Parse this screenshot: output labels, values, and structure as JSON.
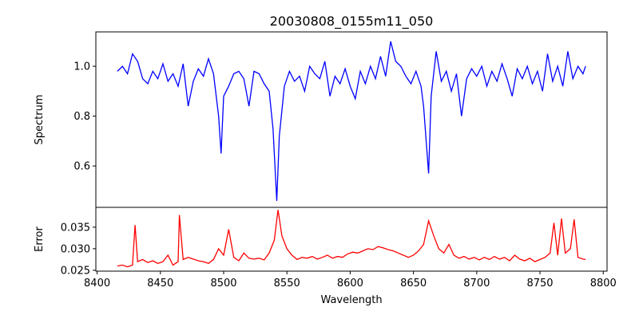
{
  "chart_data": [
    {
      "type": "line",
      "title": "20030808_0155m11_050",
      "xlabel": "",
      "ylabel": "Spectrum",
      "xlim": [
        8399,
        8803
      ],
      "ylim": [
        0.434,
        1.138
      ],
      "yticks": [
        0.6,
        0.8,
        1.0
      ],
      "ytick_labels": [
        "0.6",
        "0.8",
        "1.0"
      ],
      "color": "#0000ff",
      "x": [
        8416,
        8420,
        8424,
        8428,
        8432,
        8436,
        8440,
        8444,
        8448,
        8452,
        8456,
        8460,
        8464,
        8468,
        8472,
        8476,
        8480,
        8484,
        8488,
        8492,
        8496,
        8498,
        8500,
        8504,
        8508,
        8512,
        8516,
        8520,
        8524,
        8528,
        8532,
        8536,
        8539,
        8542,
        8544,
        8548,
        8552,
        8556,
        8560,
        8564,
        8568,
        8572,
        8576,
        8580,
        8584,
        8588,
        8592,
        8596,
        8600,
        8604,
        8608,
        8612,
        8616,
        8620,
        8624,
        8628,
        8632,
        8636,
        8640,
        8644,
        8648,
        8652,
        8656,
        8658,
        8662,
        8664,
        8668,
        8672,
        8676,
        8680,
        8684,
        8688,
        8692,
        8696,
        8700,
        8704,
        8708,
        8712,
        8716,
        8720,
        8724,
        8728,
        8732,
        8736,
        8740,
        8744,
        8748,
        8752,
        8756,
        8760,
        8764,
        8768,
        8772,
        8776,
        8780,
        8784,
        8786
      ],
      "y": [
        0.98,
        1.0,
        0.97,
        1.05,
        1.02,
        0.95,
        0.93,
        0.98,
        0.95,
        1.01,
        0.94,
        0.97,
        0.92,
        1.01,
        0.84,
        0.94,
        0.99,
        0.96,
        1.03,
        0.97,
        0.8,
        0.65,
        0.88,
        0.92,
        0.97,
        0.98,
        0.95,
        0.84,
        0.98,
        0.97,
        0.93,
        0.9,
        0.75,
        0.46,
        0.72,
        0.92,
        0.98,
        0.94,
        0.96,
        0.9,
        1.0,
        0.97,
        0.95,
        1.02,
        0.88,
        0.96,
        0.93,
        0.99,
        0.92,
        0.87,
        0.98,
        0.93,
        1.0,
        0.95,
        1.04,
        0.96,
        1.1,
        1.02,
        1.0,
        0.96,
        0.93,
        0.98,
        0.92,
        0.84,
        0.57,
        0.88,
        1.06,
        0.94,
        0.98,
        0.9,
        0.97,
        0.8,
        0.95,
        0.99,
        0.96,
        1.0,
        0.92,
        0.98,
        0.94,
        1.01,
        0.95,
        0.88,
        0.99,
        0.95,
        1.0,
        0.93,
        0.98,
        0.9,
        1.05,
        0.94,
        1.0,
        0.92,
        1.06,
        0.95,
        1.0,
        0.97,
        1.0
      ]
    },
    {
      "type": "line",
      "title": "",
      "xlabel": "Wavelength",
      "ylabel": "Error",
      "xlim": [
        8399,
        8803
      ],
      "ylim": [
        0.0248,
        0.0396
      ],
      "xticks": [
        8400,
        8450,
        8500,
        8550,
        8600,
        8650,
        8700,
        8750,
        8800
      ],
      "xtick_labels": [
        "8400",
        "8450",
        "8500",
        "8550",
        "8600",
        "8650",
        "8700",
        "8750",
        "8800"
      ],
      "yticks": [
        0.025,
        0.03,
        0.035
      ],
      "ytick_labels": [
        "0.025",
        "0.030",
        "0.035"
      ],
      "color": "#ff0000",
      "x": [
        8416,
        8420,
        8424,
        8428,
        8430,
        8432,
        8436,
        8440,
        8444,
        8448,
        8452,
        8456,
        8460,
        8464,
        8465,
        8468,
        8472,
        8476,
        8480,
        8484,
        8488,
        8492,
        8496,
        8500,
        8504,
        8508,
        8512,
        8516,
        8520,
        8524,
        8528,
        8532,
        8536,
        8540,
        8543,
        8546,
        8550,
        8554,
        8558,
        8562,
        8566,
        8570,
        8574,
        8578,
        8582,
        8586,
        8590,
        8594,
        8598,
        8602,
        8606,
        8610,
        8614,
        8618,
        8622,
        8626,
        8630,
        8634,
        8638,
        8642,
        8646,
        8650,
        8654,
        8658,
        8662,
        8666,
        8670,
        8674,
        8678,
        8682,
        8686,
        8690,
        8694,
        8698,
        8702,
        8706,
        8710,
        8714,
        8718,
        8722,
        8726,
        8730,
        8734,
        8738,
        8742,
        8746,
        8750,
        8754,
        8758,
        8761,
        8764,
        8767,
        8770,
        8774,
        8777,
        8780,
        8784,
        8786
      ],
      "y": [
        0.026,
        0.0262,
        0.0258,
        0.0262,
        0.0355,
        0.027,
        0.0275,
        0.0268,
        0.0272,
        0.0266,
        0.027,
        0.0285,
        0.0262,
        0.027,
        0.0378,
        0.0275,
        0.028,
        0.0276,
        0.0272,
        0.027,
        0.0266,
        0.0275,
        0.03,
        0.0285,
        0.0345,
        0.028,
        0.0272,
        0.029,
        0.0278,
        0.0276,
        0.0278,
        0.0274,
        0.029,
        0.032,
        0.039,
        0.033,
        0.03,
        0.0285,
        0.0275,
        0.028,
        0.0278,
        0.0282,
        0.0276,
        0.028,
        0.0285,
        0.0278,
        0.0282,
        0.028,
        0.0288,
        0.0292,
        0.029,
        0.0295,
        0.03,
        0.0298,
        0.0305,
        0.0302,
        0.0298,
        0.0295,
        0.029,
        0.0285,
        0.028,
        0.0285,
        0.0295,
        0.031,
        0.0365,
        0.033,
        0.03,
        0.029,
        0.031,
        0.0285,
        0.0278,
        0.0282,
        0.0276,
        0.028,
        0.0274,
        0.028,
        0.0275,
        0.0282,
        0.0276,
        0.028,
        0.0272,
        0.0285,
        0.0276,
        0.0272,
        0.0278,
        0.027,
        0.0275,
        0.028,
        0.029,
        0.036,
        0.0285,
        0.037,
        0.029,
        0.03,
        0.0368,
        0.028,
        0.0276,
        0.0275
      ]
    }
  ]
}
